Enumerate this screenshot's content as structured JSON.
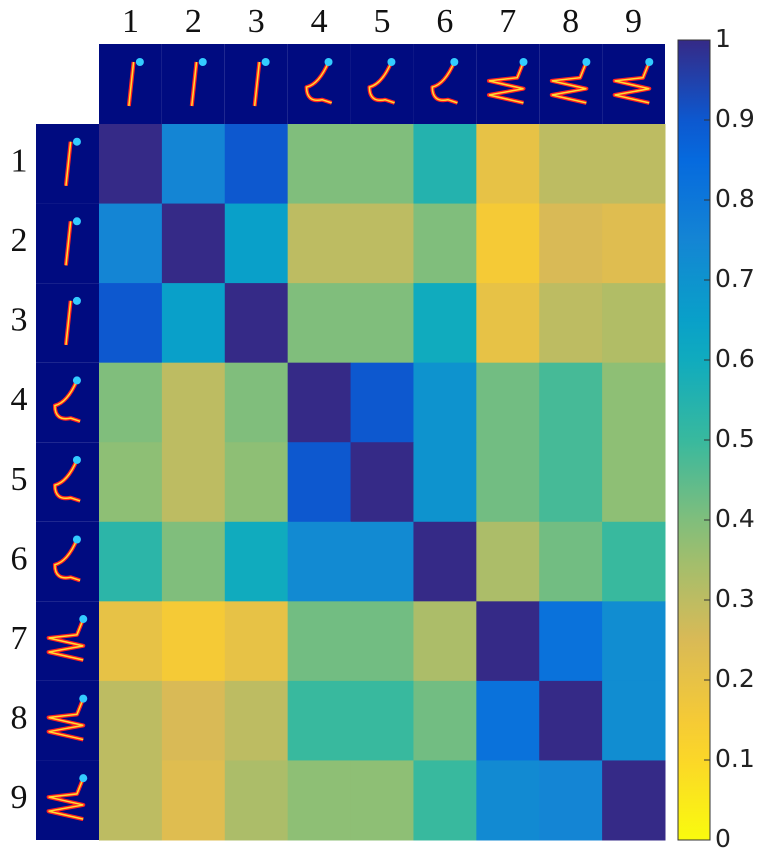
{
  "chart_data": {
    "type": "heatmap",
    "x_categories": [
      "1",
      "2",
      "3",
      "4",
      "5",
      "6",
      "7",
      "8",
      "9"
    ],
    "y_categories": [
      "1",
      "2",
      "3",
      "4",
      "5",
      "6",
      "7",
      "8",
      "9"
    ],
    "values": [
      [
        1,
        0.75,
        0.9,
        0.4,
        0.4,
        0.55,
        0.2,
        0.3,
        0.3
      ],
      [
        0.75,
        1,
        0.65,
        0.3,
        0.3,
        0.4,
        0.15,
        0.25,
        0.23
      ],
      [
        0.9,
        0.65,
        1,
        0.4,
        0.4,
        0.6,
        0.2,
        0.3,
        0.32
      ],
      [
        0.4,
        0.3,
        0.4,
        1,
        0.9,
        0.7,
        0.42,
        0.48,
        0.38
      ],
      [
        0.38,
        0.3,
        0.38,
        0.9,
        1,
        0.7,
        0.42,
        0.48,
        0.38
      ],
      [
        0.53,
        0.4,
        0.6,
        0.73,
        0.73,
        1,
        0.33,
        0.42,
        0.5
      ],
      [
        0.2,
        0.15,
        0.2,
        0.42,
        0.42,
        0.33,
        1,
        0.82,
        0.72
      ],
      [
        0.3,
        0.25,
        0.3,
        0.5,
        0.5,
        0.42,
        0.82,
        1,
        0.72
      ],
      [
        0.3,
        0.23,
        0.33,
        0.38,
        0.38,
        0.5,
        0.73,
        0.75,
        1
      ]
    ],
    "colormap": "parula",
    "reversed": true,
    "clim": [
      0,
      1
    ],
    "cticks": [
      0,
      0.1,
      0.2,
      0.3,
      0.4,
      0.5,
      0.6,
      0.7,
      0.8,
      0.9,
      1
    ]
  }
}
